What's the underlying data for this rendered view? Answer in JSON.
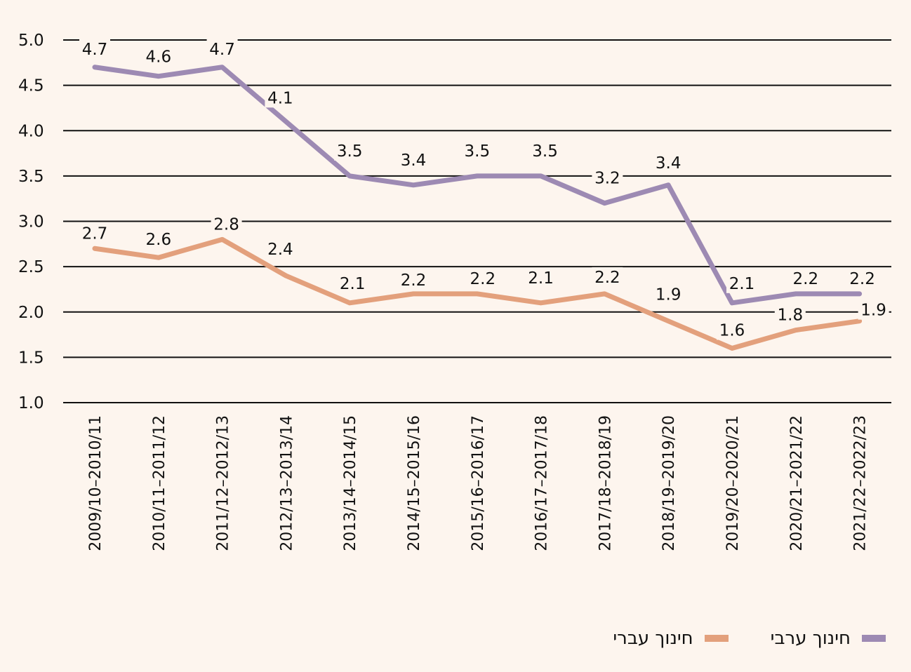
{
  "colors": {
    "arab": "#9d8ab3",
    "hebrew": "#e3a07c",
    "grid": "#111111",
    "background": "#fdf5ee"
  },
  "chart_data": {
    "type": "line",
    "title": "",
    "xlabel": "",
    "ylabel": "",
    "ylim": [
      1.0,
      5.0
    ],
    "yticks": [
      "5.0",
      "4.5",
      "4.0",
      "3.5",
      "3.0",
      "2.5",
      "2.0",
      "1.5",
      "1.0"
    ],
    "grid": true,
    "legend_position": "bottom-right",
    "categories": [
      "2009/10–2010/11",
      "2010/11–2011/12",
      "2011/12–2012/13",
      "2012/13–2013/14",
      "2013/14–2014/15",
      "2014/15–2015/16",
      "2015/16–2016/17",
      "2016/17–2017/18",
      "2017/18–2018/19",
      "2018/19–2019/20",
      "2019/20–2020/21",
      "2020/21–2021/22",
      "2021/22–2022/23"
    ],
    "series": [
      {
        "name": "חינוך ערבי",
        "key": "arab",
        "values": [
          4.7,
          4.6,
          4.7,
          4.1,
          3.5,
          3.4,
          3.5,
          3.5,
          3.2,
          3.4,
          2.1,
          2.2,
          2.2
        ],
        "labels": [
          "4.7",
          "4.6",
          "4.7",
          "4.1",
          "3.5",
          "3.4",
          "3.5",
          "3.5",
          "3.2",
          "3.4",
          "2.1",
          "2.2",
          "2.2"
        ]
      },
      {
        "name": "חינוך עברי",
        "key": "hebrew",
        "values": [
          2.7,
          2.6,
          2.8,
          2.4,
          2.1,
          2.2,
          2.2,
          2.1,
          2.2,
          1.9,
          1.6,
          1.8,
          1.9
        ],
        "labels": [
          "2.7",
          "2.6",
          "2.8",
          "2.4",
          "2.1",
          "2.2",
          "2.2",
          "2.1",
          "2.2",
          "1.9",
          "1.6",
          "1.8",
          "1.9"
        ]
      }
    ]
  },
  "legend": {
    "items": [
      {
        "label": "חינוך ערבי",
        "icon": "line-swatch-icon"
      },
      {
        "label": "חינוך עברי",
        "icon": "line-swatch-icon"
      }
    ]
  }
}
